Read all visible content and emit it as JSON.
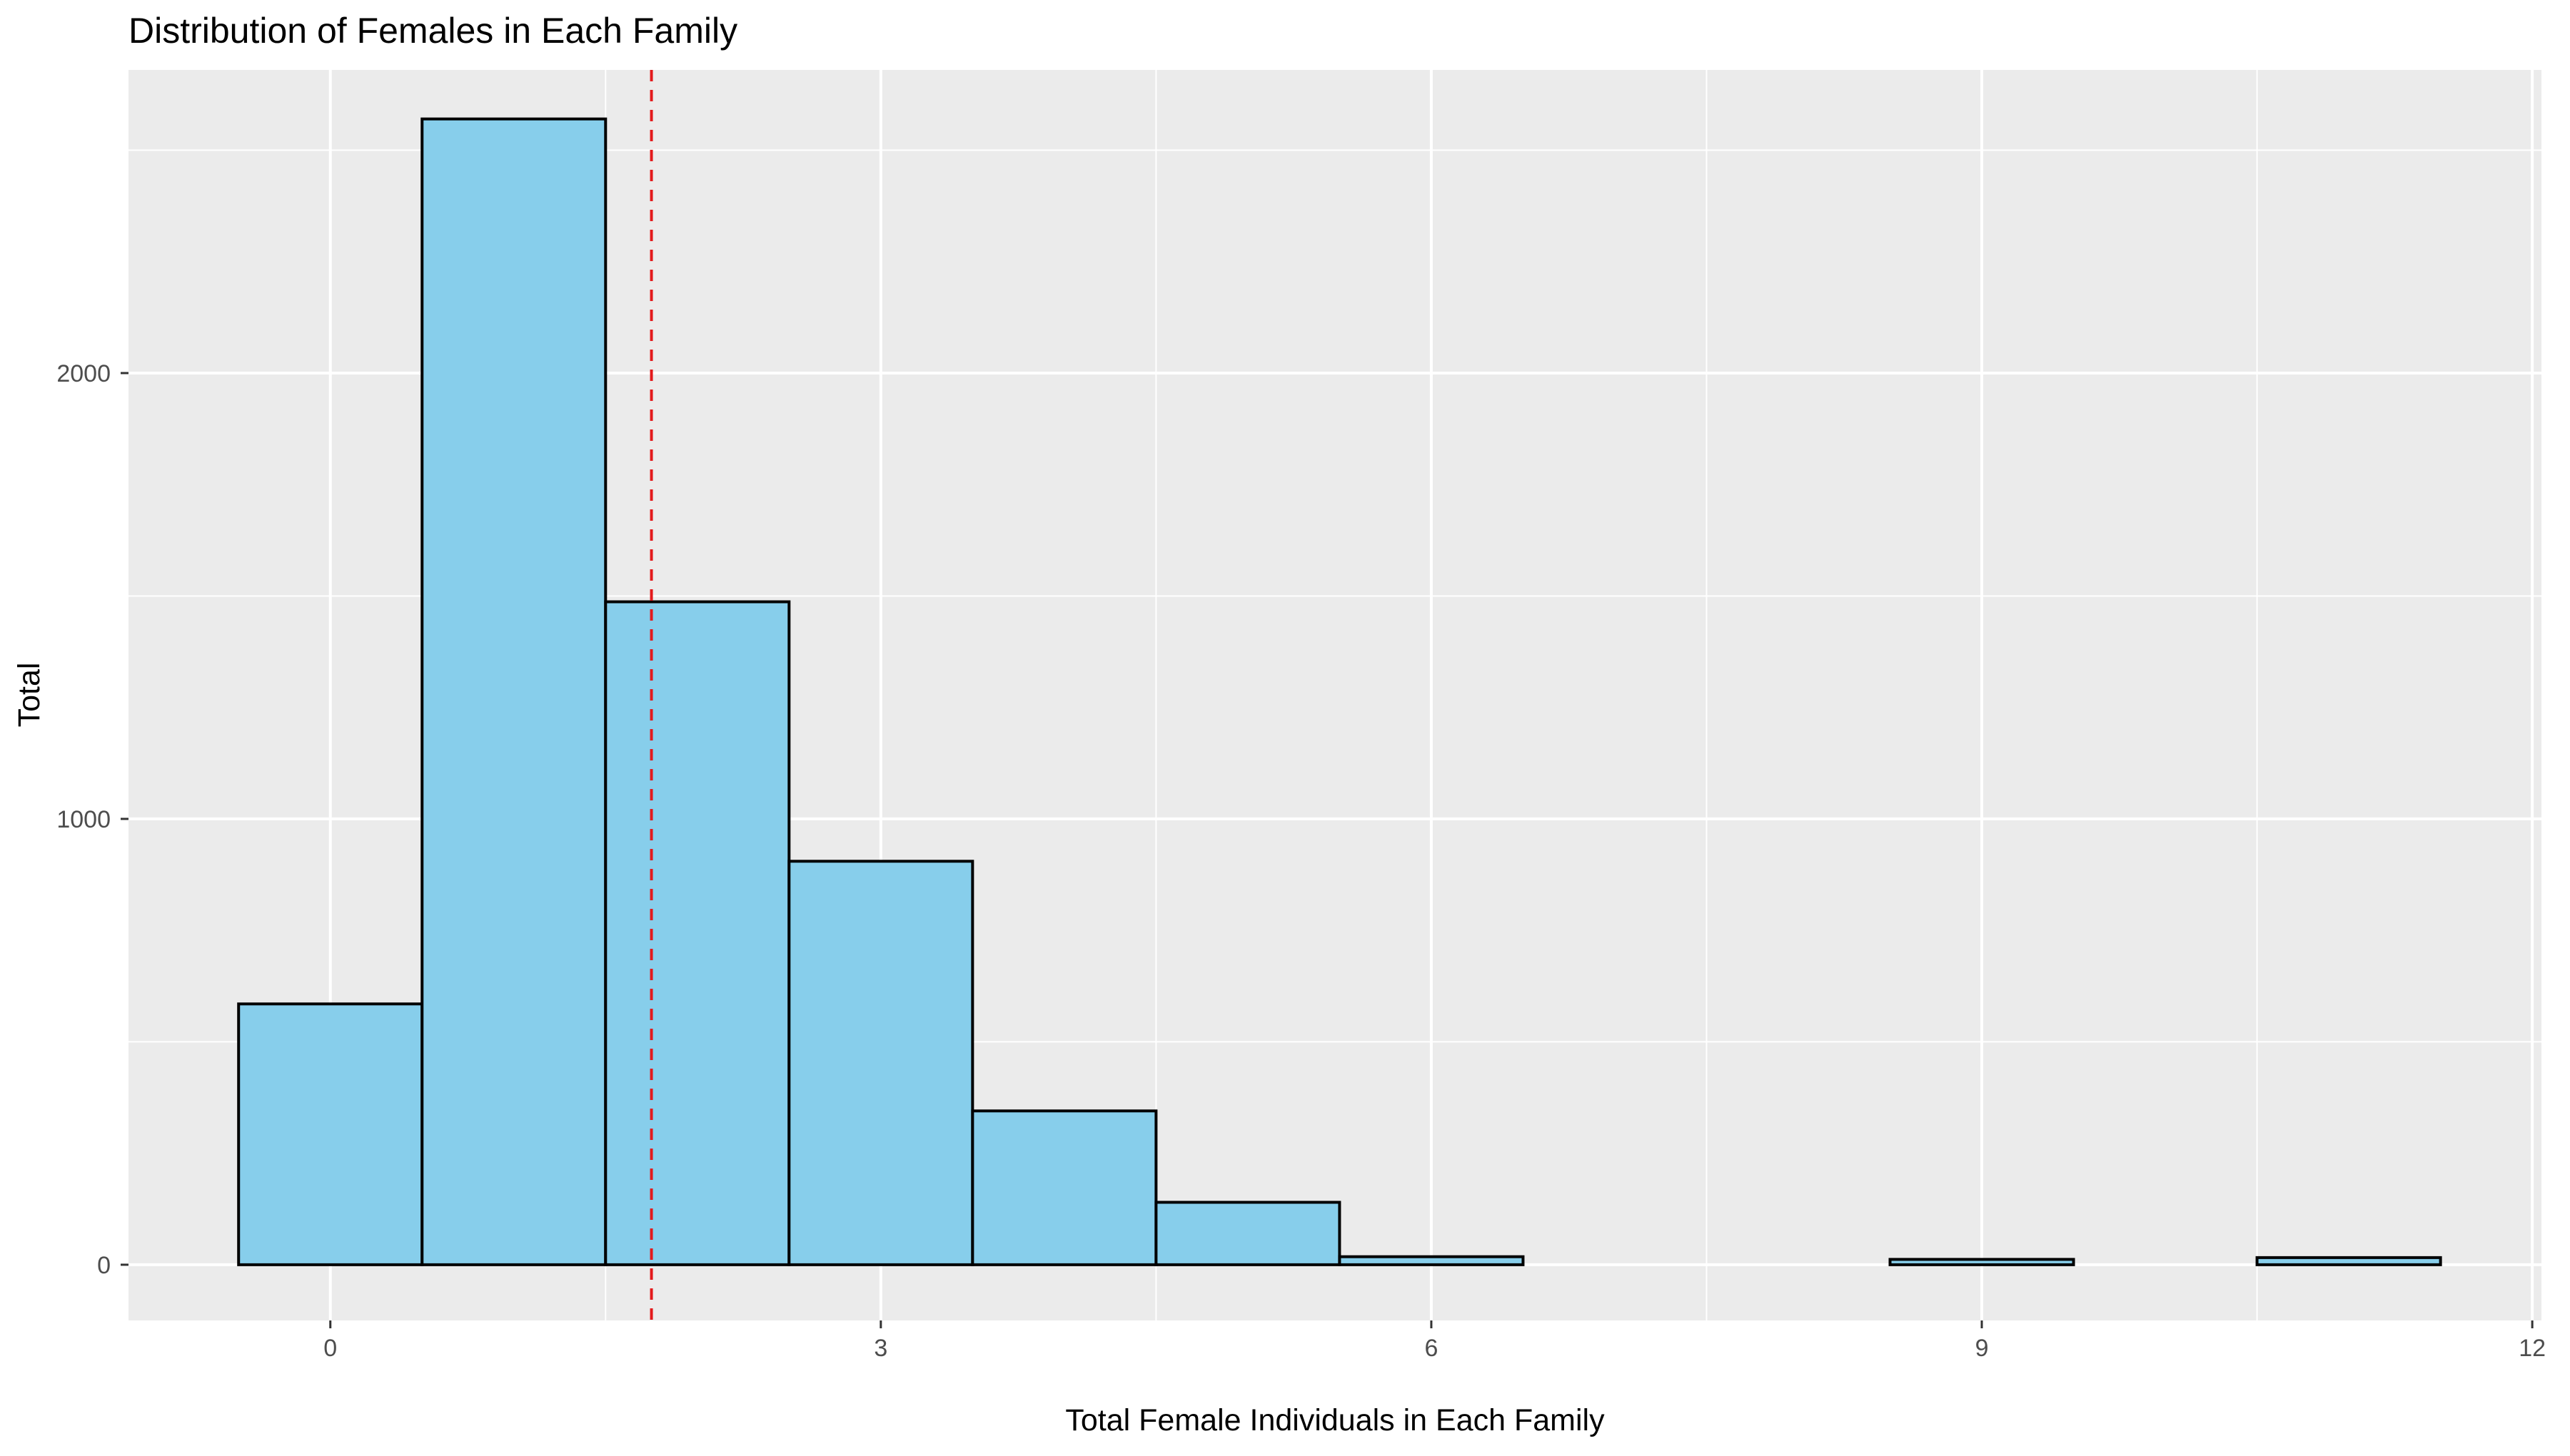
{
  "chart_data": {
    "type": "bar",
    "title": "Distribution of Females in Each Family",
    "xlabel": "Total Female Individuals in Each Family",
    "ylabel": "Total",
    "x": [
      0,
      1,
      2,
      3,
      4,
      5,
      6,
      7,
      8,
      9,
      10,
      11
    ],
    "values": [
      585,
      2570,
      1487,
      905,
      345,
      140,
      18,
      0,
      0,
      12,
      0,
      16
    ],
    "bin_width": 1,
    "xlim": [
      -1.1,
      12.05
    ],
    "ylim": [
      -125,
      2680
    ],
    "x_ticks": [
      0,
      3,
      6,
      9,
      12
    ],
    "y_ticks": [
      0,
      1000,
      2000
    ],
    "mean_line": 1.75,
    "grid": true,
    "colors": {
      "bar_fill": "#87CEEB",
      "bar_outline": "#000000",
      "mean_line": "#E31A1C",
      "panel_background": "#EBEBEB",
      "grid": "#FFFFFF"
    }
  }
}
